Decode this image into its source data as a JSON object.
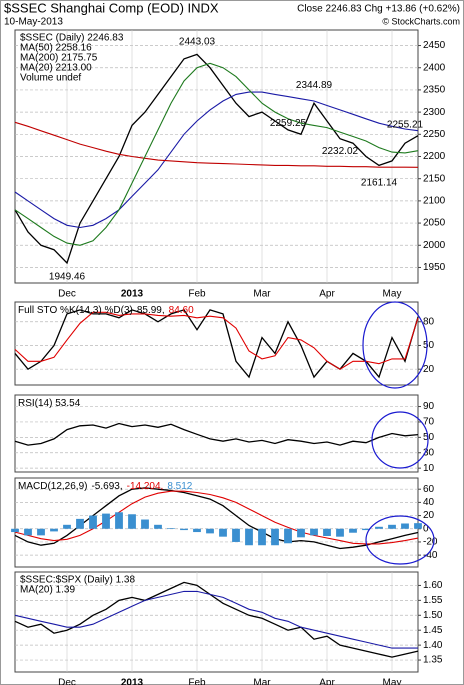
{
  "header": {
    "title": "$SSEC Shanghai Comp (EOD) INDX",
    "date": "10-May-2013",
    "quote": "Close 2246.83 Chg +13.86 (+0.62%)",
    "credit": "© StockCharts.com"
  },
  "chart_data": [
    {
      "type": "line",
      "legend": "stacked",
      "volume_label": "Volume undef",
      "categories": [
        null,
        null,
        null,
        null,
        "Dec",
        null,
        null,
        null,
        null,
        "2013",
        null,
        null,
        null,
        null,
        "Feb",
        null,
        null,
        null,
        null,
        "Mar",
        null,
        null,
        null,
        null,
        "Apr",
        null,
        null,
        null,
        null,
        "May",
        null,
        null
      ],
      "ylim": [
        1915,
        2485
      ],
      "yticks": [
        1950,
        2000,
        2050,
        2100,
        2150,
        2200,
        2250,
        2300,
        2350,
        2400,
        2450
      ],
      "grid": true,
      "series": [
        {
          "name": "$SSEC (Daily) 2246.83",
          "color": "#000000",
          "values": [
            2080,
            2030,
            2000,
            1990,
            1960,
            2050,
            2100,
            2150,
            2200,
            2270,
            2300,
            2340,
            2380,
            2420,
            2430,
            2400,
            2360,
            2320,
            2290,
            2300,
            2280,
            2260,
            2250,
            2320,
            2280,
            2240,
            2230,
            2200,
            2180,
            2190,
            2230,
            2246.83
          ]
        },
        {
          "name": "MA(50) 2258.16",
          "color": "#1a1aa6",
          "values": [
            2120,
            2100,
            2080,
            2060,
            2045,
            2040,
            2045,
            2060,
            2080,
            2110,
            2140,
            2170,
            2210,
            2250,
            2280,
            2305,
            2325,
            2340,
            2345,
            2345,
            2340,
            2335,
            2330,
            2325,
            2315,
            2305,
            2295,
            2285,
            2275,
            2268,
            2262,
            2258.16
          ]
        },
        {
          "name": "MA(200) 2175.75",
          "color": "#c00000",
          "values": [
            2277,
            2268,
            2258,
            2248,
            2238,
            2228,
            2220,
            2212,
            2205,
            2200,
            2196,
            2192,
            2190,
            2188,
            2186,
            2185,
            2184,
            2183,
            2182,
            2181,
            2180,
            2180,
            2179,
            2179,
            2178,
            2178,
            2177,
            2177,
            2176,
            2176,
            2176,
            2175.75
          ]
        },
        {
          "name": "MA(20) 2213.00",
          "color": "#1e7a1e",
          "values": [
            2080,
            2060,
            2040,
            2020,
            2005,
            2000,
            2010,
            2040,
            2080,
            2140,
            2200,
            2260,
            2320,
            2370,
            2400,
            2410,
            2400,
            2380,
            2350,
            2320,
            2300,
            2285,
            2275,
            2270,
            2265,
            2255,
            2245,
            2235,
            2220,
            2210,
            2208,
            2213
          ]
        }
      ],
      "annotations": [
        {
          "value": 1949.46,
          "index": 4
        },
        {
          "value": 2443.03,
          "index": 14
        },
        {
          "value": 2259.25,
          "index": 21
        },
        {
          "value": 2344.89,
          "index": 23
        },
        {
          "value": 2232.02,
          "index": 25
        },
        {
          "value": 2161.14,
          "index": 28
        },
        {
          "value": 2255.21,
          "index": 30
        }
      ]
    },
    {
      "type": "line",
      "legend": "inline",
      "title": "Full STO %K(14,3) %D(3)",
      "ylim": [
        0,
        105
      ],
      "yticks": [
        20,
        50,
        80
      ],
      "grid": true,
      "series": [
        {
          "name": "85.99,",
          "color": "#000000",
          "values": [
            40,
            20,
            30,
            50,
            90,
            95,
            90,
            90,
            85,
            95,
            90,
            80,
            90,
            95,
            70,
            95,
            90,
            30,
            10,
            60,
            40,
            80,
            50,
            10,
            30,
            20,
            40,
            30,
            10,
            60,
            30,
            85.99
          ]
        },
        {
          "name": "84.60",
          "color": "#e00000",
          "values": [
            45,
            30,
            30,
            35,
            57,
            78,
            92,
            92,
            88,
            90,
            90,
            88,
            87,
            88,
            85,
            87,
            85,
            72,
            43,
            33,
            37,
            60,
            57,
            47,
            30,
            20,
            30,
            30,
            27,
            33,
            33,
            84.6
          ]
        }
      ]
    },
    {
      "type": "line",
      "legend": "inline",
      "title": "RSI(14) 53.54",
      "ylim": [
        5,
        105
      ],
      "yticks": [
        10,
        30,
        50,
        70,
        90
      ],
      "grid": true,
      "series": [
        {
          "color": "#000000",
          "values": [
            45,
            40,
            42,
            48,
            60,
            65,
            66,
            62,
            68,
            64,
            66,
            63,
            67,
            60,
            54,
            48,
            45,
            48,
            44,
            46,
            42,
            47,
            45,
            42,
            44,
            40,
            45,
            43,
            50,
            55,
            52,
            53.54
          ]
        }
      ]
    },
    {
      "type": "line",
      "legend": "inline",
      "title": "MACD(12,26,9)",
      "ylim": [
        -58,
        77
      ],
      "yticks": [
        -40,
        -20,
        0,
        20,
        40,
        60
      ],
      "grid": true,
      "series": [
        {
          "name": "-5.693,",
          "color": "#000000",
          "values": [
            -10,
            -20,
            -25,
            -22,
            -10,
            5,
            20,
            35,
            50,
            60,
            62,
            60,
            58,
            55,
            50,
            45,
            35,
            20,
            5,
            -5,
            -15,
            -20,
            -18,
            -20,
            -25,
            -30,
            -28,
            -25,
            -20,
            -15,
            -10,
            -5.693
          ]
        },
        {
          "name": "-14.204,",
          "color": "#e00000",
          "values": [
            -5,
            -10,
            -15,
            -18,
            -16,
            -10,
            0,
            12,
            25,
            38,
            48,
            54,
            57,
            57,
            55,
            52,
            47,
            40,
            30,
            20,
            10,
            2,
            -5,
            -10,
            -14,
            -18,
            -22,
            -23,
            -23,
            -21,
            -18,
            -14.204
          ]
        },
        {
          "name": "8.512",
          "color": "#3a8fd0",
          "style": "bar",
          "values": [
            -5,
            -10,
            -10,
            -4,
            6,
            15,
            20,
            23,
            25,
            22,
            14,
            6,
            1,
            -2,
            -5,
            -7,
            -12,
            -20,
            -25,
            -25,
            -25,
            -22,
            -13,
            -10,
            -11,
            -12,
            -6,
            -2,
            3,
            6,
            8,
            8.512
          ]
        }
      ]
    },
    {
      "type": "line",
      "legend": "stacked",
      "categories": [
        null,
        null,
        null,
        null,
        "Dec",
        null,
        null,
        null,
        null,
        "2013",
        null,
        null,
        null,
        null,
        "Feb",
        null,
        null,
        null,
        null,
        "Mar",
        null,
        null,
        null,
        null,
        "Apr",
        null,
        null,
        null,
        null,
        "May",
        null,
        null
      ],
      "ylim": [
        1.31,
        1.645
      ],
      "yticks": [
        1.35,
        {
          "value": 1.4,
          "label": "1.40"
        },
        1.45,
        {
          "value": 1.5,
          "label": "1.50"
        },
        1.55,
        {
          "value": 1.6,
          "label": "1.60"
        }
      ],
      "grid": true,
      "series": [
        {
          "name": "$SSEC:$SPX (Daily) 1.38",
          "color": "#000000",
          "values": [
            1.48,
            1.46,
            1.47,
            1.44,
            1.45,
            1.47,
            1.5,
            1.52,
            1.55,
            1.56,
            1.55,
            1.57,
            1.59,
            1.61,
            1.6,
            1.57,
            1.54,
            1.52,
            1.5,
            1.49,
            1.47,
            1.45,
            1.46,
            1.42,
            1.43,
            1.4,
            1.39,
            1.38,
            1.37,
            1.36,
            1.37,
            1.38
          ]
        },
        {
          "name": "MA(20) 1.39",
          "color": "#1a1aa6",
          "values": [
            1.5,
            1.49,
            1.48,
            1.47,
            1.46,
            1.46,
            1.47,
            1.49,
            1.51,
            1.53,
            1.55,
            1.56,
            1.57,
            1.58,
            1.58,
            1.57,
            1.56,
            1.54,
            1.52,
            1.51,
            1.49,
            1.48,
            1.46,
            1.45,
            1.44,
            1.43,
            1.42,
            1.41,
            1.4,
            1.39,
            1.39,
            1.39
          ]
        }
      ]
    }
  ]
}
